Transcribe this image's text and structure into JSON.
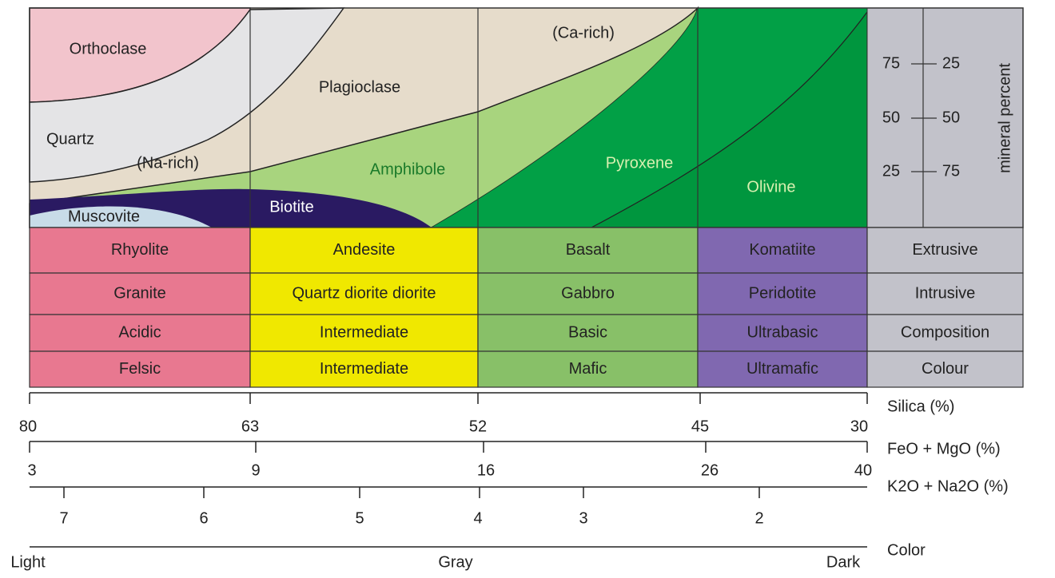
{
  "minerals": {
    "orthoclase": "Orthoclase",
    "quartz": "Quartz",
    "na_rich": "(Na-rich)",
    "plagioclase": "Plagioclase",
    "ca_rich": "(Ca-rich)",
    "amphibole": "Amphibole",
    "pyroxene": "Pyroxene",
    "olivine": "Olivine",
    "biotite": "Biotite",
    "muscovite": "Muscovite"
  },
  "mineral_percent": {
    "title": "mineral percent",
    "left": [
      75,
      50,
      25
    ],
    "right": [
      25,
      50,
      75
    ]
  },
  "table": {
    "rows": [
      [
        "Rhyolite",
        "Andesite",
        "Basalt",
        "Komatiite",
        "Extrusive"
      ],
      [
        "Granite",
        "Quartz diorite   diorite",
        "Gabbro",
        "Peridotite",
        "Intrusive"
      ],
      [
        "Acidic",
        "Intermediate",
        "Basic",
        "Ultrabasic",
        "Composition"
      ],
      [
        "Felsic",
        "Intermediate",
        "Mafic",
        "Ultramafic",
        "Colour"
      ]
    ]
  },
  "scales": [
    {
      "label": "Silica (%)",
      "ticks": [
        80,
        63,
        52,
        45,
        30
      ]
    },
    {
      "label": "FeO + MgO (%)",
      "ticks": [
        3,
        9,
        16,
        26,
        40
      ]
    },
    {
      "label": "K2O + Na2O (%)",
      "ticks": [
        7,
        6,
        5,
        4,
        3,
        2
      ]
    },
    {
      "label": "Color",
      "ticks": [
        "Light",
        "Gray",
        "Dark"
      ]
    }
  ]
}
